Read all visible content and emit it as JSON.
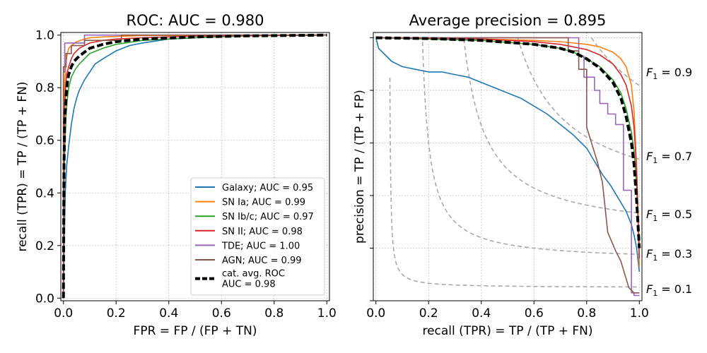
{
  "chart_data": [
    {
      "type": "line",
      "title": "ROC: AUC = 0.980",
      "xlabel": "FPR = FP / (FP + TN)",
      "ylabel": "recall (TPR) = TP / (TP + FN)",
      "xlim": [
        -0.01,
        1.01
      ],
      "ylim": [
        -0.01,
        1.01
      ],
      "xticks": [
        "0.0",
        "0.2",
        "0.4",
        "0.6",
        "0.8",
        "1.0"
      ],
      "yticks": [
        "0.0",
        "0.2",
        "0.4",
        "0.6",
        "0.8",
        "1.0"
      ],
      "grid": true,
      "legend_position": "lower-right",
      "series": [
        {
          "name": "Galaxy; AUC = 0.95",
          "color": "#1f77b4",
          "x": [
            0,
            0.003,
            0.007,
            0.012,
            0.02,
            0.03,
            0.04,
            0.05,
            0.06,
            0.08,
            0.1,
            0.12,
            0.15,
            0.2,
            0.25,
            0.3,
            0.4,
            0.5,
            0.6,
            0.8,
            1.0
          ],
          "y": [
            0,
            0.2,
            0.4,
            0.5,
            0.58,
            0.66,
            0.72,
            0.76,
            0.79,
            0.83,
            0.86,
            0.89,
            0.91,
            0.94,
            0.96,
            0.97,
            0.985,
            0.99,
            0.995,
            0.999,
            1.0
          ]
        },
        {
          "name": "SN Ia; AUC = 0.99",
          "color": "#ff7f0e",
          "x": [
            0,
            0.002,
            0.005,
            0.01,
            0.015,
            0.02,
            0.03,
            0.05,
            0.08,
            0.1,
            0.15,
            0.2,
            0.3,
            0.5,
            1.0
          ],
          "y": [
            0,
            0.7,
            0.83,
            0.9,
            0.93,
            0.95,
            0.96,
            0.975,
            0.985,
            0.99,
            0.993,
            0.995,
            0.998,
            0.999,
            1.0
          ]
        },
        {
          "name": "SN Ib/c; AUC = 0.97",
          "color": "#2ca02c",
          "x": [
            0,
            0.003,
            0.006,
            0.01,
            0.015,
            0.02,
            0.03,
            0.045,
            0.06,
            0.08,
            0.1,
            0.15,
            0.2,
            0.3,
            0.4,
            0.5,
            0.7,
            1.0
          ],
          "y": [
            0,
            0.45,
            0.6,
            0.7,
            0.76,
            0.8,
            0.84,
            0.87,
            0.89,
            0.91,
            0.93,
            0.95,
            0.965,
            0.98,
            0.985,
            0.99,
            0.997,
            1.0
          ]
        },
        {
          "name": "SN II; AUC = 0.98",
          "color": "#d62728",
          "x": [
            0,
            0.002,
            0.005,
            0.008,
            0.012,
            0.02,
            0.03,
            0.04,
            0.06,
            0.08,
            0.1,
            0.15,
            0.2,
            0.3,
            0.5,
            1.0
          ],
          "y": [
            0,
            0.55,
            0.72,
            0.8,
            0.85,
            0.88,
            0.91,
            0.93,
            0.95,
            0.96,
            0.97,
            0.98,
            0.985,
            0.99,
            0.996,
            1.0
          ]
        },
        {
          "name": "TDE; AUC = 1.00",
          "color": "#9467bd",
          "x": [
            0,
            0,
            0.005,
            0.005,
            0.08,
            0.08,
            1.0
          ],
          "y": [
            0,
            0.86,
            0.86,
            0.97,
            0.97,
            1.0,
            1.0
          ]
        },
        {
          "name": "AGN; AUC = 0.99",
          "color": "#8c564b",
          "x": [
            0,
            0,
            0.01,
            0.01,
            0.03,
            0.03,
            0.08,
            0.08,
            0.22,
            0.22,
            1.0
          ],
          "y": [
            0,
            0.88,
            0.88,
            0.93,
            0.93,
            0.96,
            0.96,
            0.98,
            0.98,
            1.0,
            1.0
          ]
        }
      ],
      "average": {
        "name": "cat. avg. ROC\nAUC = 0.98",
        "color": "#000000",
        "x": [
          0,
          0.002,
          0.005,
          0.01,
          0.015,
          0.02,
          0.03,
          0.04,
          0.06,
          0.08,
          0.1,
          0.15,
          0.2,
          0.3,
          0.5,
          0.7,
          1.0
        ],
        "y": [
          0,
          0.5,
          0.68,
          0.77,
          0.82,
          0.85,
          0.88,
          0.9,
          0.92,
          0.935,
          0.95,
          0.965,
          0.975,
          0.985,
          0.993,
          0.997,
          1.0
        ]
      }
    },
    {
      "type": "line",
      "title": "Average precision = 0.895",
      "xlabel": "recall (TPR) = TP / (TP + FN)",
      "ylabel": "precision = TP / (TP + FP)",
      "xlim": [
        -0.01,
        1.01
      ],
      "ylim": [
        0,
        1.02
      ],
      "xticks": [
        "0.0",
        "0.2",
        "0.4",
        "0.6",
        "0.8",
        "1.0"
      ],
      "grid": true,
      "f1_labels": [
        {
          "value": 0.9,
          "y": 0.87
        },
        {
          "value": 0.7,
          "y": 0.55
        },
        {
          "value": 0.5,
          "y": 0.33
        },
        {
          "value": 0.3,
          "y": 0.18
        },
        {
          "value": 0.1,
          "y": 0.045
        }
      ],
      "f1_contour_color": "#aaaaaa",
      "series": [
        {
          "name": "Galaxy",
          "color": "#1f77b4",
          "x": [
            0.0,
            0.01,
            0.02,
            0.04,
            0.06,
            0.08,
            0.1,
            0.15,
            0.2,
            0.25,
            0.3,
            0.35,
            0.4,
            0.45,
            0.5,
            0.55,
            0.6,
            0.65,
            0.7,
            0.75,
            0.8,
            0.83,
            0.86,
            0.89,
            0.92,
            0.95,
            0.97,
            0.98,
            0.99,
            1.0
          ],
          "y": [
            1.0,
            0.96,
            0.95,
            0.93,
            0.91,
            0.9,
            0.89,
            0.88,
            0.87,
            0.87,
            0.86,
            0.85,
            0.83,
            0.81,
            0.79,
            0.77,
            0.74,
            0.71,
            0.67,
            0.63,
            0.58,
            0.53,
            0.48,
            0.44,
            0.39,
            0.34,
            0.29,
            0.25,
            0.2,
            0.11
          ]
        },
        {
          "name": "SN Ia",
          "color": "#ff7f0e",
          "x": [
            0.0,
            0.2,
            0.4,
            0.6,
            0.7,
            0.8,
            0.85,
            0.9,
            0.93,
            0.95,
            0.97,
            0.98,
            0.99,
            1.0
          ],
          "y": [
            1.0,
            1.0,
            0.995,
            0.99,
            0.985,
            0.975,
            0.965,
            0.945,
            0.92,
            0.89,
            0.82,
            0.72,
            0.5,
            0.13
          ]
        },
        {
          "name": "SN Ib/c",
          "color": "#2ca02c",
          "x": [
            0.0,
            0.2,
            0.4,
            0.6,
            0.7,
            0.75,
            0.8,
            0.85,
            0.9,
            0.93,
            0.95,
            0.97,
            0.98,
            0.99,
            1.0
          ],
          "y": [
            1.0,
            0.995,
            0.99,
            0.975,
            0.96,
            0.945,
            0.92,
            0.89,
            0.84,
            0.79,
            0.73,
            0.64,
            0.57,
            0.43,
            0.2
          ]
        },
        {
          "name": "SN II",
          "color": "#d62728",
          "x": [
            0.0,
            0.2,
            0.4,
            0.6,
            0.7,
            0.8,
            0.85,
            0.9,
            0.93,
            0.95,
            0.97,
            0.98,
            0.99,
            1.0
          ],
          "y": [
            1.0,
            0.998,
            0.995,
            0.985,
            0.975,
            0.955,
            0.935,
            0.9,
            0.86,
            0.82,
            0.74,
            0.66,
            0.5,
            0.16
          ]
        },
        {
          "name": "TDE",
          "color": "#9467bd",
          "x": [
            0.0,
            0.77,
            0.77,
            0.79,
            0.79,
            0.83,
            0.83,
            0.85,
            0.85,
            0.88,
            0.88,
            0.91,
            0.91,
            0.94,
            0.94,
            0.97,
            0.97,
            0.98,
            0.98,
            1.0
          ],
          "y": [
            1.0,
            1.0,
            0.93,
            0.93,
            0.85,
            0.85,
            0.8,
            0.8,
            0.75,
            0.75,
            0.71,
            0.71,
            0.67,
            0.67,
            0.42,
            0.42,
            0.03,
            0.03,
            0.02,
            0.02
          ]
        },
        {
          "name": "AGN",
          "color": "#8c564b",
          "x": [
            0.0,
            0.73,
            0.73,
            0.77,
            0.77,
            0.8,
            0.8,
            0.8,
            0.8,
            0.84,
            0.84,
            0.86,
            0.86,
            0.88,
            0.88,
            0.91,
            0.91,
            0.93,
            0.93,
            0.96,
            0.96,
            0.98,
            0.98,
            1.0
          ],
          "y": [
            1.0,
            1.0,
            0.95,
            0.95,
            0.88,
            0.88,
            0.83,
            0.66,
            0.66,
            0.53,
            0.53,
            0.45,
            0.45,
            0.26,
            0.26,
            0.19,
            0.19,
            0.15,
            0.15,
            0.05,
            0.05,
            0.03,
            0.03,
            0.03
          ]
        }
      ],
      "average": {
        "name": "cat. avg.",
        "color": "#000000",
        "x": [
          0.0,
          0.2,
          0.4,
          0.6,
          0.7,
          0.75,
          0.8,
          0.85,
          0.9,
          0.93,
          0.95,
          0.97,
          0.98,
          0.99,
          1.0
        ],
        "y": [
          1.0,
          0.997,
          0.99,
          0.975,
          0.96,
          0.945,
          0.92,
          0.885,
          0.83,
          0.77,
          0.7,
          0.6,
          0.52,
          0.38,
          0.2
        ]
      }
    }
  ]
}
